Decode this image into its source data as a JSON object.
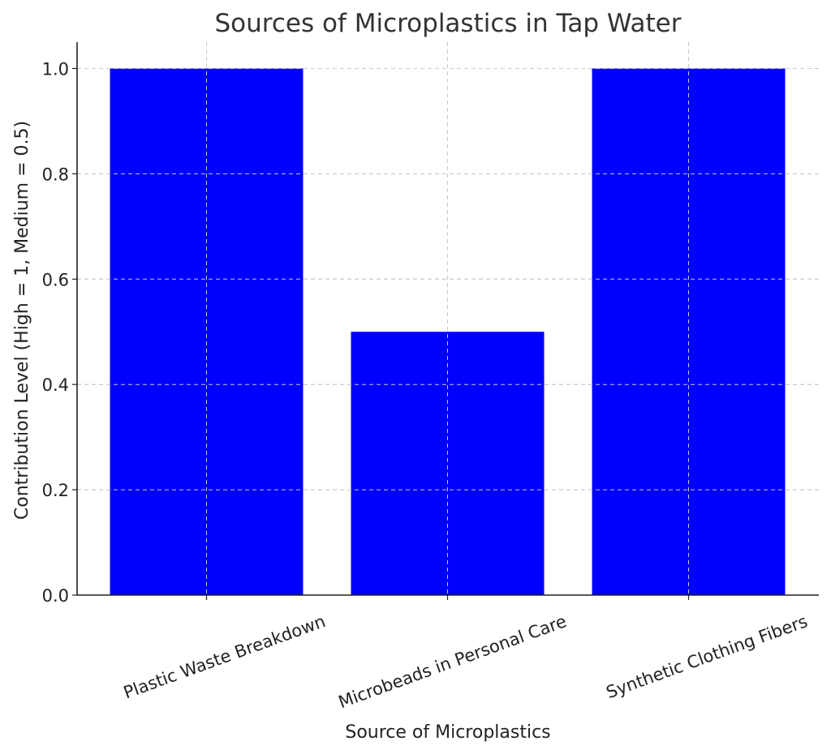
{
  "chart_data": {
    "type": "bar",
    "title": "Sources of Microplastics in Tap Water",
    "xlabel": "Source of Microplastics",
    "ylabel": "Contribution Level (High = 1, Medium = 0.5)",
    "categories": [
      "Plastic Waste Breakdown",
      "Microbeads in Personal Care",
      "Synthetic Clothing Fibers"
    ],
    "values": [
      1.0,
      0.5,
      1.0
    ],
    "ylim": [
      0,
      1.05
    ],
    "yticks": [
      "0.0",
      "0.2",
      "0.4",
      "0.6",
      "0.8",
      "1.0"
    ],
    "bar_color": "#0000ff",
    "grid": true,
    "legend": "none"
  }
}
